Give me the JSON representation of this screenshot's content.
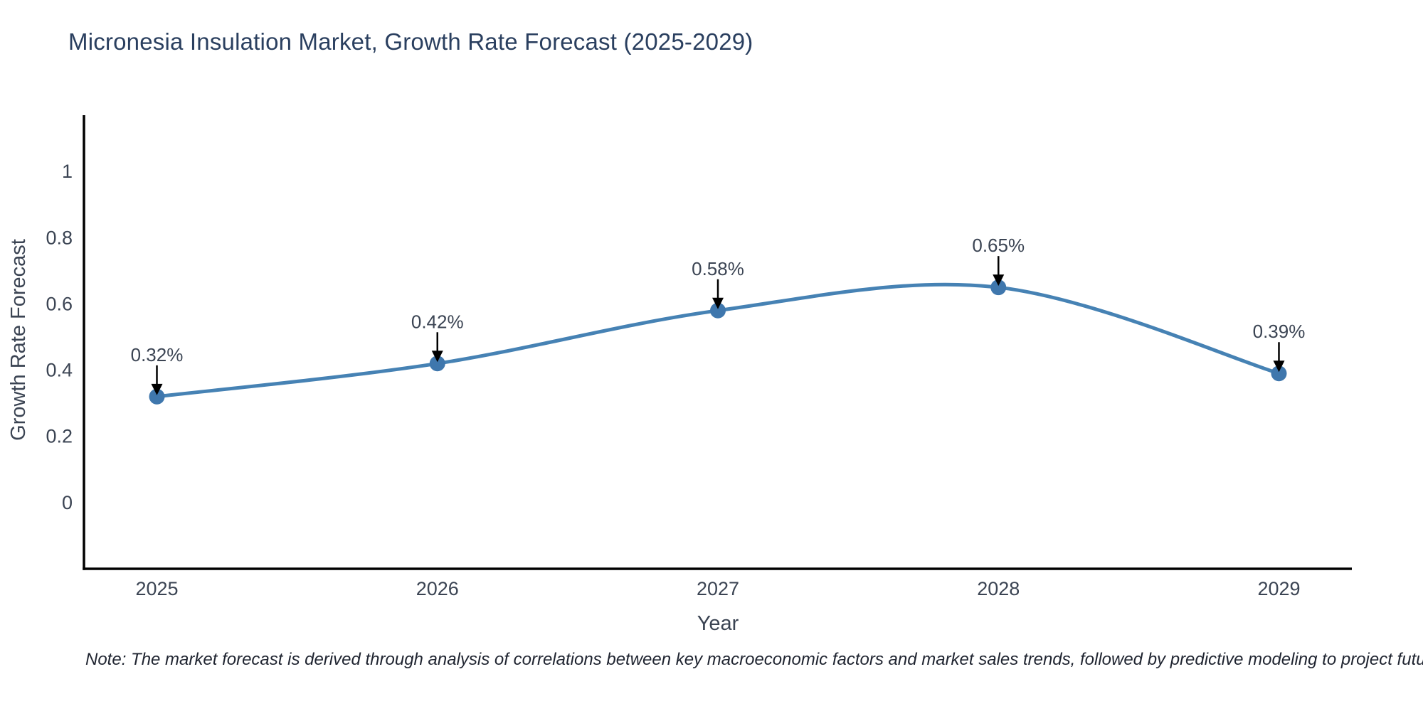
{
  "note": "Note: The market forecast is derived through analysis of correlations between key macroeconomic factors and market sales trends, followed by predictive modeling to project future sales",
  "chart_data": {
    "type": "line",
    "title": "Micronesia Insulation Market, Growth Rate Forecast (2025-2029)",
    "xlabel": "Year",
    "ylabel": "Growth Rate Forecast",
    "x": [
      2025,
      2026,
      2027,
      2028,
      2029
    ],
    "series": [
      {
        "name": "Growth Rate Forecast",
        "values": [
          0.32,
          0.42,
          0.58,
          0.65,
          0.39
        ]
      }
    ],
    "point_labels": [
      "0.32%",
      "0.42%",
      "0.58%",
      "0.65%",
      "0.39%"
    ],
    "yticks": [
      0,
      0.2,
      0.4,
      0.6,
      0.8,
      1
    ],
    "ytick_labels": [
      "0",
      "0.2",
      "0.4",
      "0.6",
      "0.8",
      "1"
    ],
    "xtick_labels": [
      "2025",
      "2026",
      "2027",
      "2028",
      "2029"
    ],
    "ylim": [
      -0.2,
      1.17
    ],
    "xlim": [
      2024.74,
      2029.26
    ],
    "line_shape": "spline",
    "grid": false,
    "legend_position": "none",
    "annotation_style": "text-above-with-down-arrow",
    "colors": {
      "line": "#4682b4",
      "marker": "#3f77ad",
      "axis": "#000000",
      "tick_text": "#3b4453",
      "title_text": "#2a3f5f",
      "annotation_text": "#3b4453",
      "arrow": "#000000",
      "note_text": "#1f2430",
      "background": "#ffffff"
    }
  }
}
